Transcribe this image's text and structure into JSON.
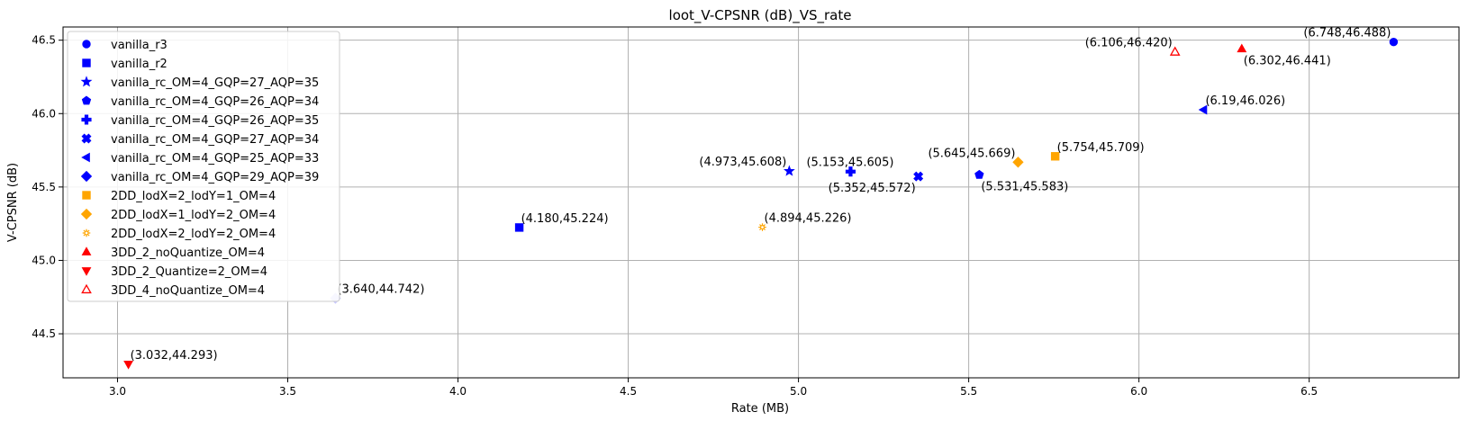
{
  "chart_data": {
    "type": "scatter",
    "title": "loot_V-CPSNR (dB)_VS_rate",
    "xlabel": "Rate (MB)",
    "ylabel": "V-CPSNR (dB)",
    "xlim": [
      2.84,
      6.94
    ],
    "ylim": [
      44.2,
      46.59
    ],
    "xticks": [
      "3.0",
      "3.5",
      "4.0",
      "4.5",
      "5.0",
      "5.5",
      "6.0",
      "6.5"
    ],
    "yticks": [
      "44.5",
      "45.0",
      "45.5",
      "46.0",
      "46.5"
    ],
    "grid": true,
    "legend_position": "top-left",
    "series": [
      {
        "name": "vanilla_r3",
        "marker": "circle",
        "color": "#0000ff",
        "filled": true,
        "x": 6.748,
        "y": 46.488,
        "label": "(6.748,46.488)",
        "label_pos": "upper-left"
      },
      {
        "name": "vanilla_r2",
        "marker": "square",
        "color": "#0000ff",
        "filled": true,
        "x": 4.18,
        "y": 45.224,
        "label": "(4.180,45.224)",
        "label_pos": "upper-right"
      },
      {
        "name": "vanilla_rc_OM=4_GQP=27_AQP=35",
        "marker": "star",
        "color": "#0000ff",
        "filled": true,
        "x": 4.973,
        "y": 45.608,
        "label": "(4.973,45.608)",
        "label_pos": "upper-left"
      },
      {
        "name": "vanilla_rc_OM=4_GQP=26_AQP=34",
        "marker": "pentagon",
        "color": "#0000ff",
        "filled": true,
        "x": 5.531,
        "y": 45.583,
        "label": "(5.531,45.583)",
        "label_pos": "lower-right"
      },
      {
        "name": "vanilla_rc_OM=4_GQP=26_AQP=35",
        "marker": "plus",
        "color": "#0000ff",
        "filled": true,
        "x": 5.153,
        "y": 45.605,
        "label": "(5.153,45.605)",
        "label_pos": "upper-left-near"
      },
      {
        "name": "vanilla_rc_OM=4_GQP=27_AQP=34",
        "marker": "x",
        "color": "#0000ff",
        "filled": true,
        "x": 5.352,
        "y": 45.572,
        "label": "(5.352,45.572)",
        "label_pos": "lower-left"
      },
      {
        "name": "vanilla_rc_OM=4_GQP=25_AQP=33",
        "marker": "triangle-left",
        "color": "#0000ff",
        "filled": true,
        "x": 6.19,
        "y": 46.026,
        "label": "(6.19,46.026)",
        "label_pos": "upper-right"
      },
      {
        "name": "vanilla_rc_OM=4_GQP=29_AQP=39",
        "marker": "diamond",
        "color": "#0000ff",
        "filled": true,
        "x": 3.64,
        "y": 44.742,
        "label": "(3.640,44.742)",
        "label_pos": "upper-right",
        "plot_color": "#c8c8ff"
      },
      {
        "name": "2DD_lodX=2_lodY=1_OM=4",
        "marker": "square",
        "color": "#ffa500",
        "filled": true,
        "x": 5.754,
        "y": 45.709,
        "label": "(5.754,45.709)",
        "label_pos": "upper-right"
      },
      {
        "name": "2DD_lodX=1_lodY=2_OM=4",
        "marker": "diamond",
        "color": "#ffa500",
        "filled": true,
        "x": 5.645,
        "y": 45.669,
        "label": "(5.645,45.669)",
        "label_pos": "upper-left"
      },
      {
        "name": "2DD_lodX=2_lodY=2_OM=4",
        "marker": "flower",
        "color": "#ffa500",
        "filled": false,
        "x": 4.894,
        "y": 45.226,
        "label": "(4.894,45.226)",
        "label_pos": "upper-right"
      },
      {
        "name": "3DD_2_noQuantize_OM=4",
        "marker": "triangle-up",
        "color": "#ff0000",
        "filled": true,
        "x": 6.302,
        "y": 46.441,
        "label": "(6.302,46.441)",
        "label_pos": "lower-right"
      },
      {
        "name": "3DD_2_Quantize=2_OM=4",
        "marker": "triangle-down",
        "color": "#ff0000",
        "filled": true,
        "x": 3.032,
        "y": 44.293,
        "label": "(3.032,44.293)",
        "label_pos": "upper-right"
      },
      {
        "name": "3DD_4_noQuantize_OM=4",
        "marker": "triangle-up",
        "color": "#ff0000",
        "filled": false,
        "x": 6.106,
        "y": 46.42,
        "label": "(6.106,46.420)",
        "label_pos": "upper-left"
      }
    ]
  }
}
